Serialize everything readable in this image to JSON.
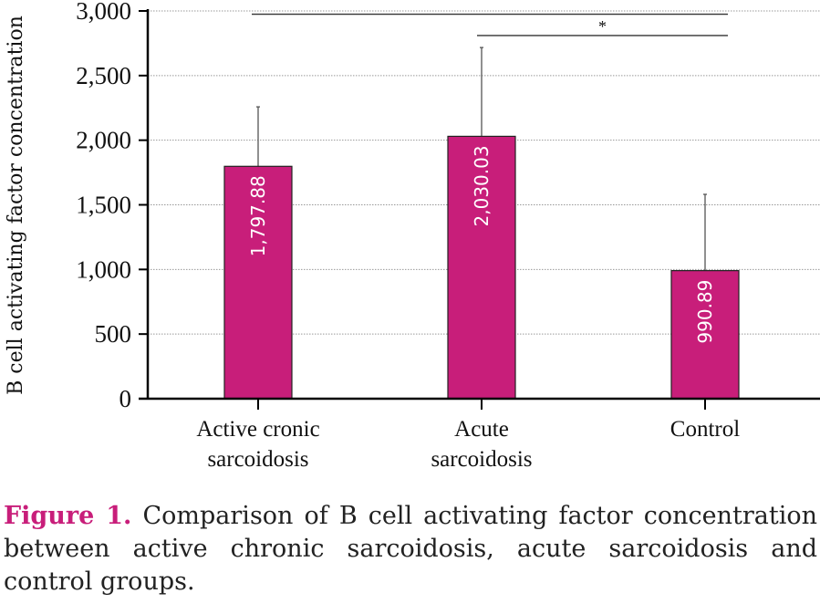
{
  "chart_data": {
    "type": "bar",
    "categories": [
      [
        "Active cronic",
        "sarcoidosis"
      ],
      [
        "Acute",
        "sarcoidosis"
      ],
      [
        "Control",
        ""
      ]
    ],
    "values": [
      1797.88,
      2030.03,
      990.89
    ],
    "data_labels": [
      "1,797.88",
      "2,030.03",
      "990.89"
    ],
    "error_upper": [
      2258,
      2717,
      1581
    ],
    "ylabel": "B cell activating factor concentration",
    "ylim": [
      0,
      3000
    ],
    "yticks": [
      0,
      500,
      1000,
      1500,
      2000,
      2500,
      3000
    ],
    "ytick_labels": [
      "0",
      "500",
      "1,000",
      "1,500",
      "2,000",
      "2,500",
      "3,000"
    ],
    "grid": true,
    "bar_color": "#c81e7a",
    "significance": [
      {
        "from": 0,
        "to": 2,
        "value": 2975,
        "label": ""
      },
      {
        "from": 1,
        "to": 2,
        "value": 2810,
        "label": "*"
      }
    ]
  },
  "caption": {
    "label": "Figure 1.",
    "text": "Comparison of B cell activating factor concentration between active chronic sarcoidosis, acute sarcoidosis and control groups."
  }
}
